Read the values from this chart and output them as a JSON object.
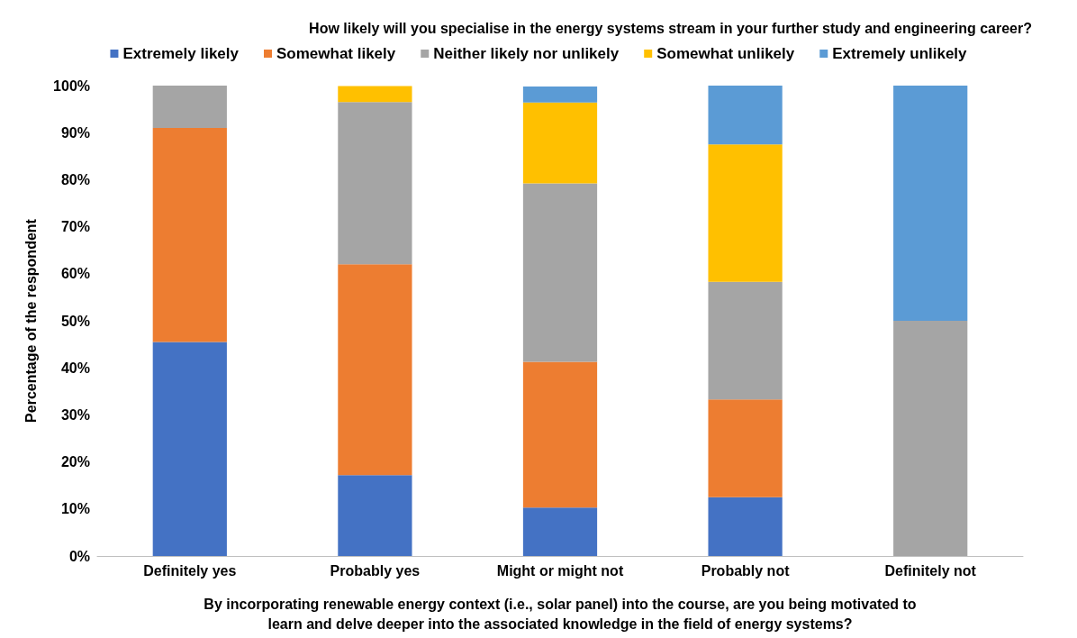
{
  "chart_data": {
    "type": "bar",
    "stacked": true,
    "title": "How likely will you specialise in the energy systems stream in your further study and engineering career?",
    "xlabel": "By incorporating renewable energy context (i.e., solar panel) into the course, are you being motivated to\nlearn and delve deeper into the associated knowledge in the field of energy systems?",
    "ylabel": "Percentage of the respondent",
    "categories": [
      "Definitely yes",
      "Probably yes",
      "Might or might not",
      "Probably not",
      "Definitely not"
    ],
    "series": [
      {
        "name": "Extremely likely",
        "color": "#4472c4",
        "values": [
          45.5,
          17.2,
          10.3,
          12.5,
          0
        ]
      },
      {
        "name": "Somewhat likely",
        "color": "#ed7d31",
        "values": [
          45.5,
          44.8,
          31.0,
          20.8,
          0
        ]
      },
      {
        "name": "Neither likely nor unlikely",
        "color": "#a5a5a5",
        "values": [
          9.1,
          34.5,
          37.9,
          25.0,
          50
        ]
      },
      {
        "name": "Somewhat unlikely",
        "color": "#ffc000",
        "values": [
          0,
          3.4,
          17.2,
          29.2,
          0
        ]
      },
      {
        "name": "Extremely unlikely",
        "color": "#5b9bd5",
        "values": [
          0,
          0,
          3.4,
          12.5,
          50
        ]
      }
    ],
    "ylim": [
      0,
      100
    ],
    "yticks": [
      {
        "value": 0,
        "label": "0%"
      },
      {
        "value": 10,
        "label": "10%"
      },
      {
        "value": 20,
        "label": "20%"
      },
      {
        "value": 30,
        "label": "30%"
      },
      {
        "value": 40,
        "label": "40%"
      },
      {
        "value": 50,
        "label": "50%"
      },
      {
        "value": 60,
        "label": "60%"
      },
      {
        "value": 70,
        "label": "70%"
      },
      {
        "value": 80,
        "label": "80%"
      },
      {
        "value": 90,
        "label": "90%"
      },
      {
        "value": 100,
        "label": "100%"
      }
    ],
    "grid": false,
    "legend": "top"
  }
}
